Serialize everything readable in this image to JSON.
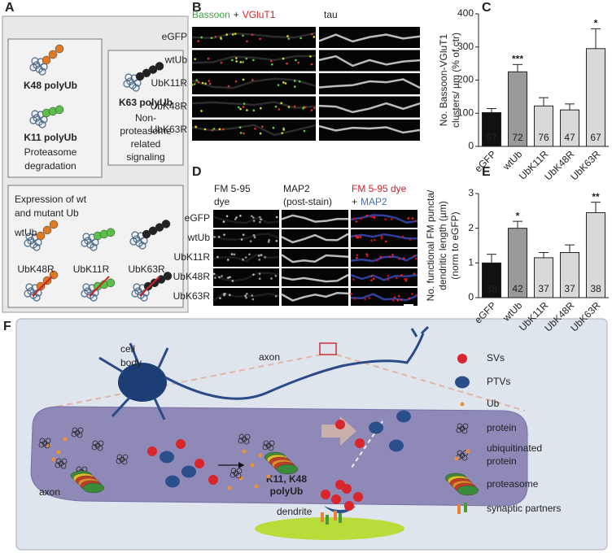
{
  "panel_labels": [
    "A",
    "B",
    "C",
    "D",
    "E",
    "F"
  ],
  "panel_a": {
    "k48": "K48 polyUb",
    "k11": "K11 polyUb",
    "proteasome_note": [
      "Proteasome",
      "degradation"
    ],
    "k63": "K63 polyUb",
    "signaling_note": [
      "Non-",
      "proteasome",
      "related",
      "signaling"
    ],
    "expression_title": [
      "Expression of wt",
      "and mutant Ub"
    ],
    "constructs": [
      "wtUb",
      "UbK48R",
      "UbK11R",
      "UbK63R"
    ]
  },
  "panel_b": {
    "header_green": "Bassoon",
    "header_plus": "+",
    "header_red": "VGluT1",
    "header_tau": "tau",
    "rows": [
      "eGFP",
      "wtUb",
      "UbK11R",
      "UbK48R",
      "UbK63R"
    ]
  },
  "panel_d": {
    "header_fm": [
      "FM 5-95",
      "dye"
    ],
    "header_map2": [
      "MAP2",
      "(post-stain)"
    ],
    "header_merge_red": "FM 5-95 dye",
    "header_merge_plus": "+",
    "header_merge_blue": "MAP2",
    "rows": [
      "eGFP",
      "wtUb",
      "UbK11R",
      "UbK48R",
      "UbK63R"
    ]
  },
  "chart_data": [
    {
      "type": "bar",
      "ylabel_lines": [
        "No. Bassoon-VGluT1",
        "clusters/ µm (% of ctr)"
      ],
      "categories": [
        "eGFP",
        "wtUb",
        "UbK11R",
        "UbK48R",
        "UbK63R"
      ],
      "values": [
        102,
        225,
        122,
        110,
        295
      ],
      "errors": [
        12,
        22,
        25,
        18,
        60
      ],
      "colors": [
        "#111111",
        "#9a9a9a",
        "#d9d9d9",
        "#d9d9d9",
        "#d9d9d9"
      ],
      "sample_sizes": [
        57,
        72,
        76,
        47,
        67
      ],
      "significance": [
        null,
        "***",
        null,
        null,
        "*"
      ],
      "ylim": [
        0,
        400
      ],
      "yticks": [
        0,
        100,
        200,
        300,
        400
      ]
    },
    {
      "type": "bar",
      "ylabel_lines": [
        "No. functional FM puncta/",
        "dendritic length (µm)",
        "(norm to eGFP)"
      ],
      "categories": [
        "eGFP",
        "wtUb",
        "UbK11R",
        "UbK48R",
        "UbK63R"
      ],
      "values": [
        1.0,
        2.0,
        1.15,
        1.3,
        2.45
      ],
      "errors": [
        0.25,
        0.2,
        0.15,
        0.22,
        0.3
      ],
      "colors": [
        "#111111",
        "#9a9a9a",
        "#d9d9d9",
        "#d9d9d9",
        "#d9d9d9"
      ],
      "sample_sizes": [
        38,
        42,
        37,
        37,
        38
      ],
      "significance": [
        null,
        "*",
        null,
        null,
        "**"
      ],
      "ylim": [
        0,
        3
      ],
      "yticks": [
        0,
        1,
        2,
        3
      ]
    }
  ],
  "panel_f": {
    "cell_body": [
      "cell",
      "body"
    ],
    "axon_top": "axon",
    "axon_bottom": "axon",
    "polyub_note": [
      "K11, K48",
      "polyUb"
    ],
    "dendrite": "dendrite",
    "legend": [
      [
        "SVs"
      ],
      [
        "PTVs"
      ],
      [
        "Ub"
      ],
      [
        "protein"
      ],
      [
        "ubiquitinated",
        "protein"
      ],
      [
        "proteasome"
      ],
      [
        "synaptic partners"
      ]
    ]
  }
}
